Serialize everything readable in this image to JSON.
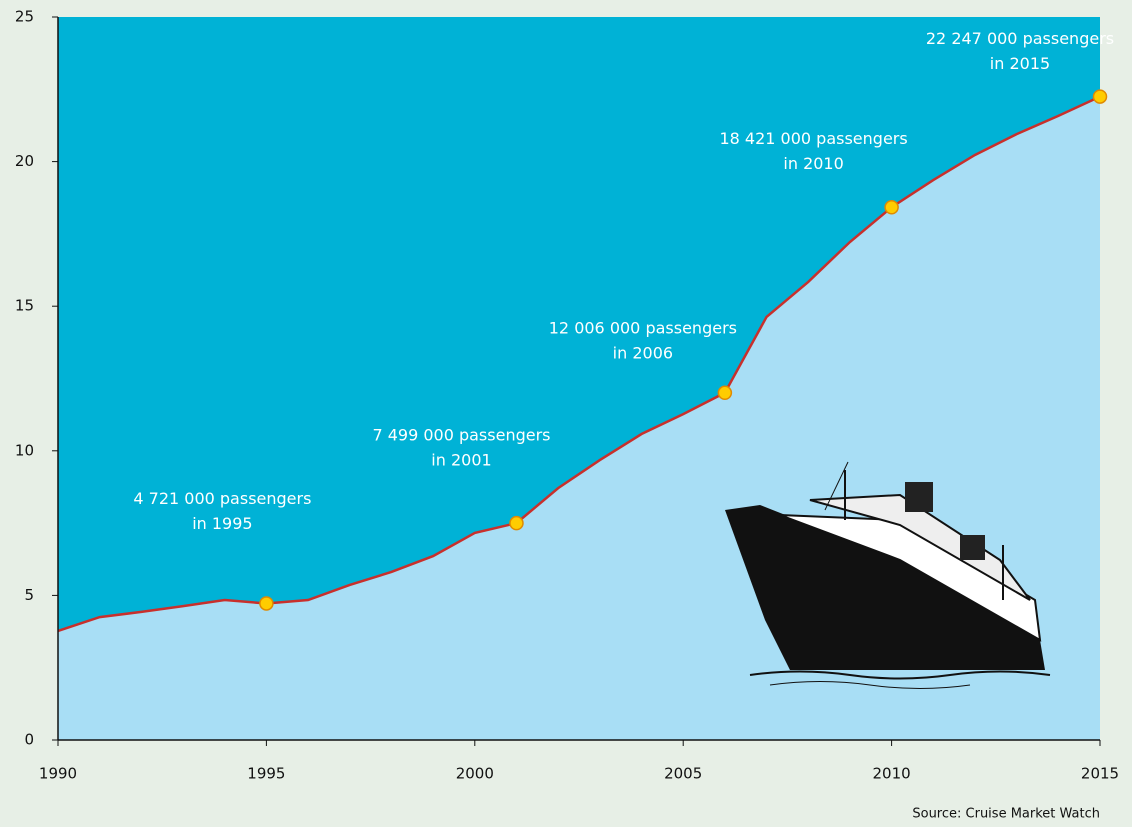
{
  "chart_data": {
    "type": "area",
    "source": "Source: Cruise Market Watch",
    "x": [
      1990,
      1991,
      1992,
      1993,
      1994,
      1995,
      1996,
      1997,
      1998,
      1999,
      2000,
      2001,
      2002,
      2003,
      2004,
      2005,
      2006,
      2007,
      2008,
      2009,
      2010,
      2011,
      2012,
      2013,
      2014,
      2015
    ],
    "values": [
      3.77,
      4.25,
      4.43,
      4.63,
      4.84,
      4.721,
      4.84,
      5.36,
      5.81,
      6.36,
      7.16,
      7.499,
      8.71,
      9.68,
      10.58,
      11.27,
      12.006,
      14.63,
      15.84,
      17.22,
      18.421,
      19.36,
      20.23,
      20.95,
      21.58,
      22.247
    ],
    "line_color": "#c8302c",
    "area_color": "#a8def5",
    "background_color": "#00b2d6",
    "marker_color": "#ffcc00",
    "xlim": [
      1990,
      2015
    ],
    "xticks": [
      1990,
      1995,
      2000,
      2005,
      2010,
      2015
    ],
    "ylim": [
      0,
      25
    ],
    "yticks": [
      0,
      5,
      10,
      15,
      20,
      25
    ],
    "annotations": [
      {
        "x": 1995,
        "lines": [
          "4 721 000 passengers",
          "in 1995"
        ]
      },
      {
        "x": 2001,
        "lines": [
          "7 499 000 passengers",
          "in 2001"
        ]
      },
      {
        "x": 2006,
        "lines": [
          "12 006 000 passengers",
          "in 2006"
        ]
      },
      {
        "x": 2010,
        "lines": [
          "18 421 000 passengers",
          "in 2010"
        ]
      },
      {
        "x": 2015,
        "lines": [
          "22 247 000 passengers",
          "in 2015"
        ]
      }
    ]
  }
}
